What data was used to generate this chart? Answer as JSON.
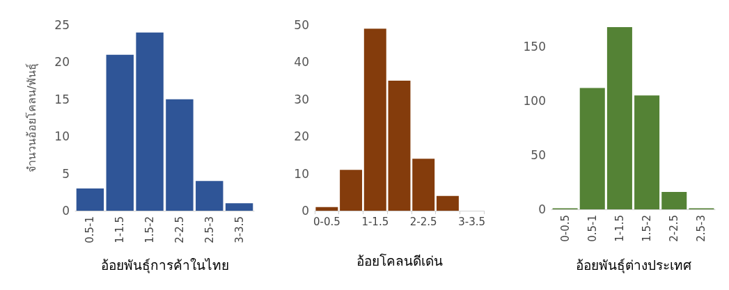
{
  "chart_data": [
    {
      "type": "bar",
      "ylabel": "จำนวนอ้อยโคลน/พันธุ์",
      "xlabel": "อ้อยพันธุ์การค้าในไทย",
      "categories": [
        "0.5-1",
        "1-1.5",
        "1.5-2",
        "2-2.5",
        "2.5-3",
        "3-3.5"
      ],
      "values": [
        3,
        21,
        24,
        15,
        4,
        1
      ],
      "color": "#2f5597",
      "ylim": [
        0,
        25
      ],
      "yticks": [
        0,
        5,
        10,
        15,
        20,
        25
      ]
    },
    {
      "type": "bar",
      "xlabel": "อ้อยโคลนดีเด่น",
      "categories": [
        "0-0.5",
        null,
        "1-1.5",
        null,
        "2-2.5",
        null,
        "3-3.5"
      ],
      "values": [
        1,
        11,
        49,
        35,
        14,
        4,
        0
      ],
      "color": "#843c0c",
      "ylim": [
        0,
        50
      ],
      "yticks": [
        0,
        10,
        20,
        30,
        40,
        50
      ]
    },
    {
      "type": "bar",
      "xlabel": "อ้อยพันธุ์ต่างประเทศ",
      "categories": [
        "0-0.5",
        "0.5-1",
        "1-1.5",
        "1.5-2",
        "2-2.5",
        "2.5-3"
      ],
      "values": [
        1,
        112,
        168,
        105,
        16,
        1
      ],
      "color": "#548235",
      "ylim": [
        0,
        170
      ],
      "yticks": [
        0,
        50,
        100,
        150
      ]
    }
  ]
}
